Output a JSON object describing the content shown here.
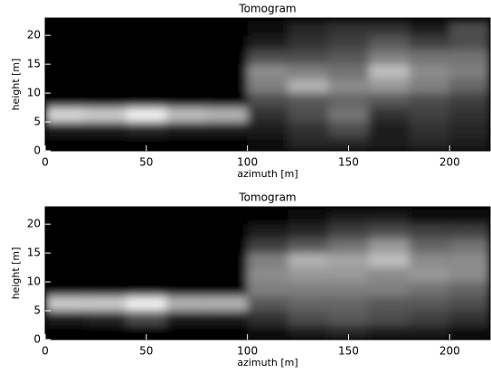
{
  "chart_data": [
    {
      "type": "heatmap",
      "title": "Tomogram",
      "x_label": "azimuth [m]",
      "y_label": "height [m]",
      "xlim": [
        0,
        220
      ],
      "ylim": [
        0,
        23
      ],
      "xticks": [
        0,
        50,
        100,
        150,
        200
      ],
      "yticks": [
        0,
        5,
        10,
        15,
        20
      ],
      "x_edges": [
        0,
        20,
        40,
        60,
        80,
        100,
        120,
        140,
        160,
        180,
        200,
        220
      ],
      "y_edges": [
        0,
        2.5,
        5,
        7.5,
        10,
        12.5,
        15,
        17.5,
        20,
        22.5
      ],
      "z": [
        [
          0,
          0,
          0,
          0,
          0,
          0.05,
          0.15,
          0.15,
          0.1,
          0.15,
          0.1
        ],
        [
          0.1,
          0.1,
          0.15,
          0.1,
          0.1,
          0.1,
          0.2,
          0.3,
          0.1,
          0.2,
          0.15
        ],
        [
          0.85,
          0.8,
          0.95,
          0.75,
          0.7,
          0.2,
          0.3,
          0.45,
          0.2,
          0.25,
          0.2
        ],
        [
          0,
          0,
          0,
          0,
          0,
          0.3,
          0.35,
          0.4,
          0.35,
          0.3,
          0.25
        ],
        [
          0,
          0,
          0,
          0,
          0,
          0.5,
          0.7,
          0.55,
          0.6,
          0.5,
          0.4
        ],
        [
          0,
          0,
          0,
          0,
          0,
          0.55,
          0.5,
          0.45,
          0.75,
          0.55,
          0.5
        ],
        [
          0,
          0,
          0,
          0,
          0,
          0.3,
          0.3,
          0.35,
          0.5,
          0.45,
          0.45
        ],
        [
          0,
          0,
          0,
          0,
          0,
          0.1,
          0.2,
          0.25,
          0.35,
          0.25,
          0.3
        ],
        [
          0,
          0,
          0,
          0,
          0,
          0.05,
          0.15,
          0.2,
          0.2,
          0.1,
          0.3
        ]
      ]
    },
    {
      "type": "heatmap",
      "title": "Tomogram",
      "x_label": "azimuth [m]",
      "y_label": "height [m]",
      "xlim": [
        0,
        220
      ],
      "ylim": [
        0,
        23
      ],
      "xticks": [
        0,
        50,
        100,
        150,
        200
      ],
      "yticks": [
        0,
        5,
        10,
        15,
        20
      ],
      "x_edges": [
        0,
        20,
        40,
        60,
        80,
        100,
        120,
        140,
        160,
        180,
        200,
        220
      ],
      "y_edges": [
        0,
        2.5,
        5,
        7.5,
        10,
        12.5,
        15,
        17.5,
        20,
        22.5
      ],
      "z": [
        [
          0,
          0,
          0,
          0,
          0,
          0.05,
          0.1,
          0.15,
          0.1,
          0.1,
          0.05
        ],
        [
          0.1,
          0.15,
          0.3,
          0.1,
          0.1,
          0.2,
          0.3,
          0.35,
          0.3,
          0.25,
          0.2
        ],
        [
          0.8,
          0.8,
          0.95,
          0.7,
          0.7,
          0.35,
          0.4,
          0.4,
          0.35,
          0.35,
          0.3
        ],
        [
          0,
          0,
          0,
          0,
          0,
          0.5,
          0.5,
          0.5,
          0.5,
          0.45,
          0.4
        ],
        [
          0,
          0,
          0,
          0,
          0,
          0.55,
          0.6,
          0.6,
          0.55,
          0.6,
          0.55
        ],
        [
          0,
          0,
          0,
          0,
          0,
          0.5,
          0.7,
          0.65,
          0.75,
          0.55,
          0.55
        ],
        [
          0,
          0,
          0,
          0,
          0,
          0.25,
          0.35,
          0.45,
          0.6,
          0.4,
          0.45
        ],
        [
          0,
          0,
          0,
          0,
          0,
          0.1,
          0.15,
          0.25,
          0.3,
          0.25,
          0.25
        ],
        [
          0,
          0,
          0,
          0,
          0,
          0,
          0.05,
          0.1,
          0.1,
          0.05,
          0.05
        ]
      ]
    }
  ]
}
